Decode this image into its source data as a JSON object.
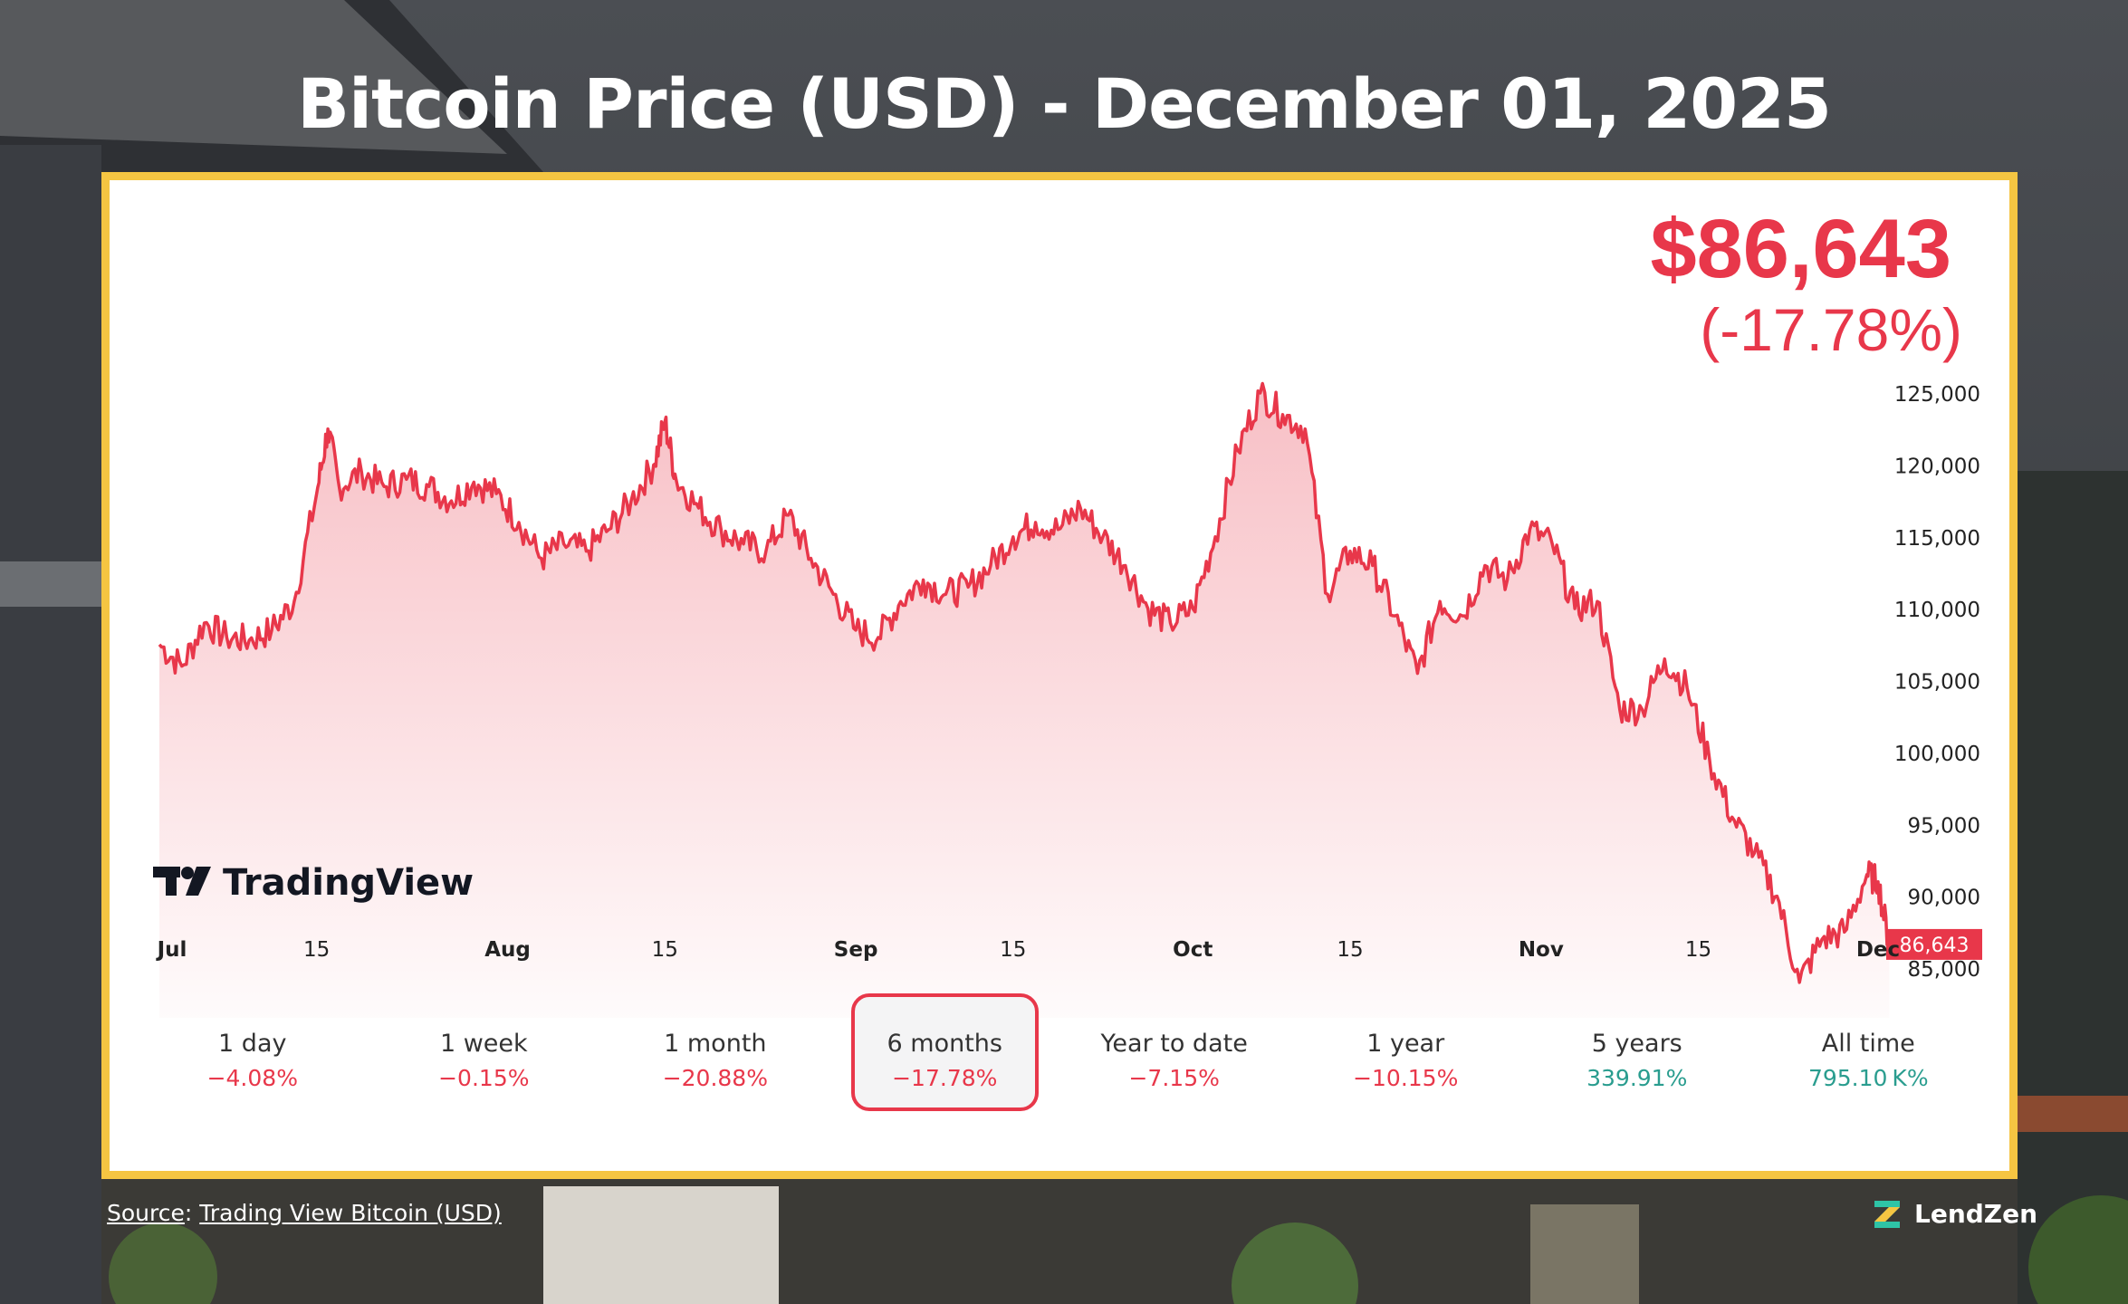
{
  "title": "Bitcoin Price (USD) - December 01, 2025",
  "current_price": "$86,643",
  "current_change": "(-17.78%)",
  "price_tag": "86,643",
  "watermark": "TradingView",
  "source_label": "Source",
  "source_link": "Trading View Bitcoin (USD)",
  "brand": "LendZen",
  "colors": {
    "line": "#e8374a",
    "frame": "#f5c542",
    "negative": "#e8374a",
    "positive": "#2a9d8f"
  },
  "ranges": [
    {
      "label": "1 day",
      "value": "−4.08%",
      "trend": "neg",
      "active": false
    },
    {
      "label": "1 week",
      "value": "−0.15%",
      "trend": "neg",
      "active": false
    },
    {
      "label": "1 month",
      "value": "−20.88%",
      "trend": "neg",
      "active": false
    },
    {
      "label": "6 months",
      "value": "−17.78%",
      "trend": "neg",
      "active": true
    },
    {
      "label": "Year to date",
      "value": "−7.15%",
      "trend": "neg",
      "active": false
    },
    {
      "label": "1 year",
      "value": "−10.15%",
      "trend": "neg",
      "active": false
    },
    {
      "label": "5 years",
      "value": "339.91%",
      "trend": "pos",
      "active": false
    },
    {
      "label": "All time",
      "value": "795.10 K%",
      "trend": "pos",
      "active": false
    }
  ],
  "chart_data": {
    "type": "area",
    "x_ticks": [
      "Jul",
      "15",
      "Aug",
      "15",
      "Sep",
      "15",
      "Oct",
      "15",
      "Nov",
      "15",
      "Dec"
    ],
    "x_tick_days": [
      0,
      14,
      31,
      45,
      62,
      76,
      92,
      106,
      123,
      137,
      153
    ],
    "y_ticks": [
      "125,000",
      "120,000",
      "115,000",
      "110,000",
      "105,000",
      "100,000",
      "95,000",
      "90,000",
      "85,000"
    ],
    "ylim": [
      81000,
      126000
    ],
    "grid": false,
    "series": [
      {
        "x_days": [
          0,
          2,
          4,
          6,
          8,
          10,
          12,
          14,
          15,
          16,
          18,
          20,
          22,
          24,
          26,
          28,
          30,
          32,
          34,
          36,
          38,
          40,
          42,
          44,
          45,
          46,
          48,
          50,
          52,
          54,
          56,
          58,
          60,
          62,
          64,
          66,
          68,
          70,
          72,
          74,
          76,
          78,
          80,
          82,
          84,
          86,
          88,
          90,
          92,
          94,
          96,
          98,
          100,
          102,
          104,
          106,
          108,
          110,
          112,
          114,
          116,
          118,
          120,
          122,
          124,
          126,
          128,
          130,
          132,
          134,
          136,
          138,
          140,
          142,
          144,
          146,
          148,
          150,
          152,
          153,
          154
        ],
        "values": [
          107500,
          106000,
          109000,
          108000,
          107800,
          108500,
          110500,
          118000,
          122500,
          118500,
          119500,
          118500,
          119000,
          118500,
          117500,
          118800,
          118000,
          116000,
          113500,
          114500,
          114000,
          115500,
          117500,
          120000,
          123000,
          119000,
          117000,
          115500,
          114500,
          114000,
          116500,
          113500,
          111000,
          108500,
          108000,
          110500,
          112000,
          111000,
          111500,
          113000,
          115000,
          116000,
          115500,
          117000,
          115000,
          113000,
          110000,
          109000,
          110000,
          115000,
          121000,
          125000,
          123500,
          122500,
          111000,
          114000,
          113000,
          109500,
          105500,
          110500,
          109500,
          113000,
          112000,
          115500,
          114500,
          110000,
          110500,
          103000,
          103000,
          106500,
          104500,
          99500,
          95500,
          93000,
          90000,
          84000,
          87000,
          87500,
          91500,
          91000,
          86643
        ]
      }
    ]
  }
}
